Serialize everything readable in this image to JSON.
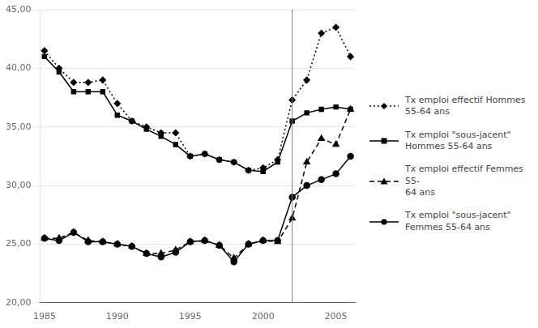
{
  "chart_data": {
    "type": "line",
    "x": [
      1985,
      1986,
      1987,
      1988,
      1989,
      1990,
      1991,
      1992,
      1993,
      1994,
      1995,
      1996,
      1997,
      1998,
      1999,
      2000,
      2001,
      2002,
      2003,
      2004,
      2005,
      2006
    ],
    "series": [
      {
        "name": "Tx emploi  effectif Hommes\n55-64 ans",
        "color": "#000000",
        "marker": "diamond",
        "line_style": "dotted",
        "values": [
          41.5,
          40.0,
          38.8,
          38.8,
          39.0,
          37.0,
          35.5,
          35.0,
          34.5,
          34.5,
          32.5,
          32.7,
          32.2,
          32.0,
          31.3,
          31.5,
          32.2,
          37.3,
          39.0,
          43.0,
          43.5,
          41.0
        ]
      },
      {
        "name": "Tx emploi \"sous-jacent\"\nHommes 55-64 ans",
        "color": "#000000",
        "marker": "square",
        "line_style": "solid",
        "values": [
          41.0,
          39.7,
          38.0,
          38.0,
          38.0,
          36.0,
          35.5,
          34.8,
          34.2,
          33.5,
          32.5,
          32.7,
          32.2,
          32.0,
          31.3,
          31.2,
          32.0,
          35.5,
          36.2,
          36.5,
          36.7,
          36.5
        ]
      },
      {
        "name": "Tx emploi effectif Femmes 55-\n64 ans",
        "color": "#000000",
        "marker": "triangle",
        "line_style": "dashed",
        "values": [
          25.5,
          25.5,
          26.0,
          25.3,
          25.2,
          25.0,
          24.8,
          24.2,
          24.2,
          24.5,
          25.2,
          25.3,
          24.9,
          23.8,
          25.0,
          25.3,
          25.2,
          27.2,
          32.0,
          34.0,
          33.5,
          36.5
        ]
      },
      {
        "name": "Tx emploi \"sous-jacent\"\nFemmes 55-64 ans",
        "color": "#000000",
        "marker": "circle",
        "line_style": "solid",
        "values": [
          25.5,
          25.3,
          26.0,
          25.2,
          25.2,
          25.0,
          24.8,
          24.2,
          23.9,
          24.3,
          25.2,
          25.3,
          24.9,
          23.5,
          25.0,
          25.3,
          25.3,
          29.0,
          30.0,
          30.5,
          31.0,
          32.5
        ]
      }
    ],
    "xlim": [
      1984.7,
      2006.3
    ],
    "xticks": [
      1985,
      1990,
      1995,
      2000,
      2005
    ],
    "ylim": [
      20,
      45
    ],
    "yticks": [
      {
        "value": 20,
        "label": "20,00"
      },
      {
        "value": 25,
        "label": "25,00"
      },
      {
        "value": 30,
        "label": "30,00"
      },
      {
        "value": 35,
        "label": "35,00"
      },
      {
        "value": 40,
        "label": "40,00"
      },
      {
        "value": 45,
        "label": "45,00"
      }
    ],
    "vlines": [
      {
        "x": 2002,
        "color": "gray"
      }
    ],
    "grid": "y",
    "legend": "right"
  }
}
